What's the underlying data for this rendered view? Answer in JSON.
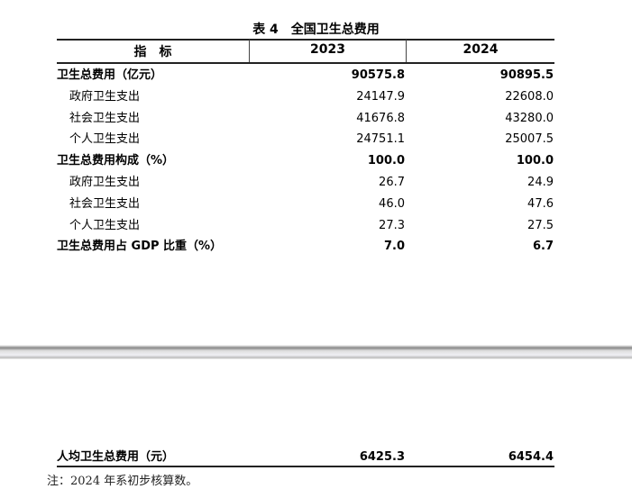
{
  "title": "表 4　全国卫生总费用",
  "headers": {
    "indicator": "指　标",
    "year1": "2023",
    "year2": "2024"
  },
  "rows": [
    {
      "label": "卫生总费用（亿元）",
      "v2023": "90575.8",
      "v2024": "90895.5",
      "bold": true
    },
    {
      "label": "政府卫生支出",
      "v2023": "24147.9",
      "v2024": "22608.0"
    },
    {
      "label": "社会卫生支出",
      "v2023": "41676.8",
      "v2024": "43280.0"
    },
    {
      "label": "个人卫生支出",
      "v2023": "24751.1",
      "v2024": "25007.5"
    },
    {
      "label": "卫生总费用构成（%）",
      "v2023": "100.0",
      "v2024": "100.0",
      "bold": true
    },
    {
      "label": "政府卫生支出",
      "v2023": "26.7",
      "v2024": "24.9"
    },
    {
      "label": "社会卫生支出",
      "v2023": "46.0",
      "v2024": "47.6"
    },
    {
      "label": "个人卫生支出",
      "v2023": "27.3",
      "v2024": "27.5"
    },
    {
      "label": "卫生总费用占 GDP 比重（%）",
      "v2023": "7.0",
      "v2024": "6.7",
      "bold": true
    }
  ],
  "last_row": {
    "label": "人均卫生总费用（元）",
    "v2023": "6425.3",
    "v2024": "6454.4"
  },
  "note": "注：2024 年系初步核算数。"
}
